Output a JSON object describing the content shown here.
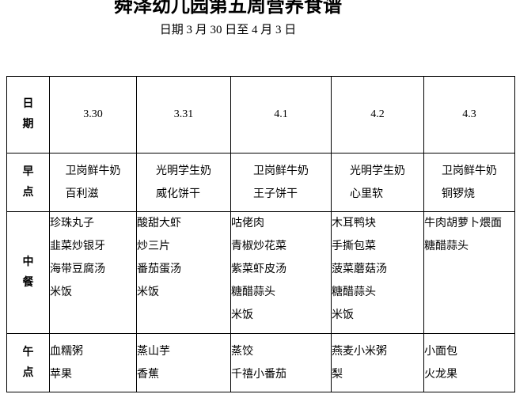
{
  "title": "舜泽幼儿园第五周营养食谱",
  "subtitle": "日期 3 月 30 日至 4 月 3 日",
  "table": {
    "corner_label": "日期",
    "dates": [
      "3.30",
      "3.31",
      "4.1",
      "4.2",
      "4.3"
    ],
    "rows": [
      {
        "label": "早点",
        "cells": [
          [
            "卫岗鲜牛奶",
            "百利滋"
          ],
          [
            "光明学生奶",
            "威化饼干"
          ],
          [
            "卫岗鲜牛奶",
            "王子饼干"
          ],
          [
            "光明学生奶",
            "心里软"
          ],
          [
            "卫岗鲜牛奶",
            "铜锣烧"
          ]
        ]
      },
      {
        "label": "中餐",
        "cells": [
          [
            "珍珠丸子",
            "韭菜炒银牙",
            "海带豆腐汤",
            "米饭"
          ],
          [
            "酸甜大虾",
            "炒三片",
            "番茄蛋汤",
            "米饭"
          ],
          [
            "咕佬肉",
            "青椒炒花菜",
            "紫菜虾皮汤",
            "糖醋蒜头",
            "米饭"
          ],
          [
            "木耳鸭块",
            "手撕包菜",
            "菠菜蘑菇汤",
            "糖醋蒜头",
            "米饭"
          ],
          [
            "牛肉胡萝卜煨面",
            "糖醋蒜头"
          ]
        ]
      },
      {
        "label": "午点",
        "cells": [
          [
            "血糯粥",
            "苹果"
          ],
          [
            "蒸山芋",
            "香蕉"
          ],
          [
            "蒸饺",
            "千禧小番茄"
          ],
          [
            "燕麦小米粥",
            "梨"
          ],
          [
            "小面包",
            "火龙果"
          ]
        ]
      }
    ]
  }
}
